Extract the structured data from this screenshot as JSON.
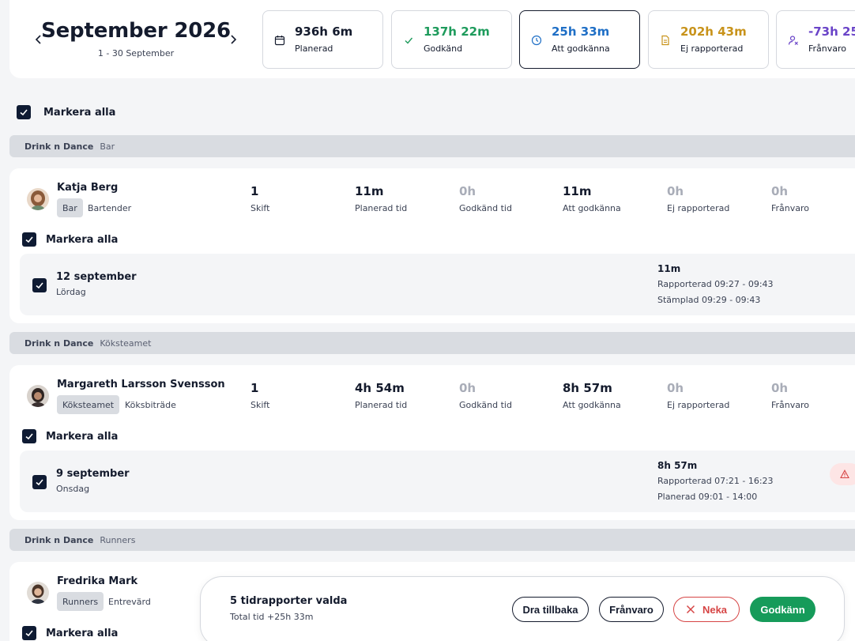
{
  "header": {
    "month_title": "September 2026",
    "month_range": "1 - 30 September",
    "prev_icon": "chevron-left-icon",
    "next_icon": "chevron-right-icon"
  },
  "stats": [
    {
      "value": "936h 6m",
      "label": "Planerad",
      "color": "#141b2d",
      "icon": "calendar-icon"
    },
    {
      "value": "137h 22m",
      "label": "Godkänd",
      "color": "#1e9b5c",
      "icon": "check-icon"
    },
    {
      "value": "25h 33m",
      "label": "Att godkänna",
      "color": "#1f6fc6",
      "icon": "clock-icon"
    },
    {
      "value": "202h 43m",
      "label": "Ej rapporterad",
      "color": "#c8931b",
      "icon": "document-icon"
    },
    {
      "value": "-73h 25",
      "label": "Frånvaro",
      "color": "#6a44c8",
      "icon": "user-absent-icon"
    }
  ],
  "select_all_label": "Markera alla",
  "groups": [
    {
      "org": "Drink n Dance",
      "team": "Bar"
    },
    {
      "org": "Drink n Dance",
      "team": "Köksteamet"
    },
    {
      "org": "Drink n Dance",
      "team": "Runners"
    }
  ],
  "metric_labels": [
    "Skift",
    "Planerad tid",
    "Godkänd tid",
    "Att godkänna",
    "Ej rapporterad",
    "Frånvaro"
  ],
  "employees": [
    {
      "name": "Katja Berg",
      "tag": "Bar",
      "role": "Bartender",
      "metrics": [
        "1",
        "11m",
        "0h",
        "11m",
        "0h",
        "0h"
      ],
      "select_all_label": "Markera alla",
      "day": {
        "date": "12 september",
        "weekday": "Lördag",
        "total": "11m",
        "line1": "Rapporterad 09:27 - 09:43",
        "line2": "Stämplad 09:29 - 09:43"
      }
    },
    {
      "name": "Margareth Larsson Svensson",
      "tag": "Köksteamet",
      "role": "Köksbiträde",
      "metrics": [
        "1",
        "4h 54m",
        "0h",
        "8h 57m",
        "0h",
        "0h"
      ],
      "select_all_label": "Markera alla",
      "day": {
        "date": "9 september",
        "weekday": "Onsdag",
        "total": "8h 57m",
        "line1": "Rapporterad 07:21 - 16:23",
        "line2": "Planerad 09:01 - 14:00"
      }
    },
    {
      "name": "Fredrika Mark",
      "tag": "Runners",
      "role": "Entrevärd",
      "select_all_label": "Markera alla"
    }
  ],
  "action_bar": {
    "title": "5 tidrapporter valda",
    "subtitle": "Total tid +25h 33m",
    "withdraw_label": "Dra tillbaka",
    "absence_label": "Frånvaro",
    "deny_label": "Neka",
    "approve_label": "Godkänn"
  },
  "colors": {
    "accent_dark": "#0f1b33",
    "approve": "#169b5a",
    "deny": "#d64545"
  }
}
